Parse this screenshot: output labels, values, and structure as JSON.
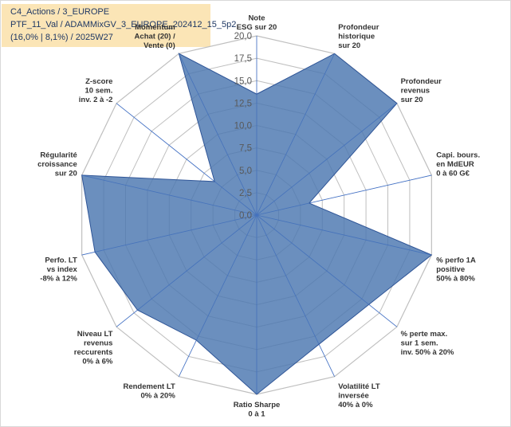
{
  "info": {
    "line1": "C4_Actions / 3_EUROPE",
    "line2": "PTF_11_Val / ADAMMixGV_3_EUROPE_202412_15_5p2",
    "line3": "(16,0% | 8,1%) / 2025W27"
  },
  "colors": {
    "fill": "#4a76b0",
    "stroke": "#2f5597",
    "grid": "#bfbfbf",
    "spoke": "#4472c4",
    "info_bg": "#fbe5b6"
  },
  "chart_data": {
    "type": "radar",
    "rmin": 0,
    "rmax": 20,
    "ticks": [
      "0,0",
      "2,5",
      "5,0",
      "7,5",
      "10,0",
      "12,5",
      "15,0",
      "17,5",
      "20,0"
    ],
    "tick_values": [
      0,
      2.5,
      5,
      7.5,
      10,
      12.5,
      15,
      17.5,
      20
    ],
    "axes": [
      {
        "label": [
          "Note",
          "ESG sur 20"
        ],
        "value": 13.5
      },
      {
        "label": [
          "Profondeur",
          "historique",
          "sur 20"
        ],
        "value": 20
      },
      {
        "label": [
          "Profondeur",
          "revenus",
          "sur 20"
        ],
        "value": 20
      },
      {
        "label": [
          "Capi. bours.",
          "en MdEUR",
          "0 à 60 G€"
        ],
        "value": 6
      },
      {
        "label": [
          "% perfo 1A",
          "positive",
          "50% à 80%"
        ],
        "value": 20
      },
      {
        "label": [
          "% perte max.",
          "sur 1 sem.",
          "inv. 50% à 20%"
        ],
        "value": 16
      },
      {
        "label": [
          "Volatilité LT",
          "inversée",
          "40% à 0%"
        ],
        "value": 16
      },
      {
        "label": [
          "Ratio Sharpe",
          "0 à 1"
        ],
        "value": 20
      },
      {
        "label": [
          "Rendement LT",
          "0% à 20%"
        ],
        "value": 15.5
      },
      {
        "label": [
          "Niveau LT",
          "revenus",
          "reccurents",
          "0% à 6%"
        ],
        "value": 17
      },
      {
        "label": [
          "Perfo. LT",
          "vs index",
          "-8% à 12%"
        ],
        "value": 18.5
      },
      {
        "label": [
          "Régularité",
          "croissance",
          "sur 20"
        ],
        "value": 20
      },
      {
        "label": [
          "Z-score",
          "10 sem.",
          "inv. 2 à -2"
        ],
        "value": 6
      },
      {
        "label": [
          "Momentum",
          "Achat (20) /",
          "Vente (0)"
        ],
        "value": 20
      }
    ]
  }
}
